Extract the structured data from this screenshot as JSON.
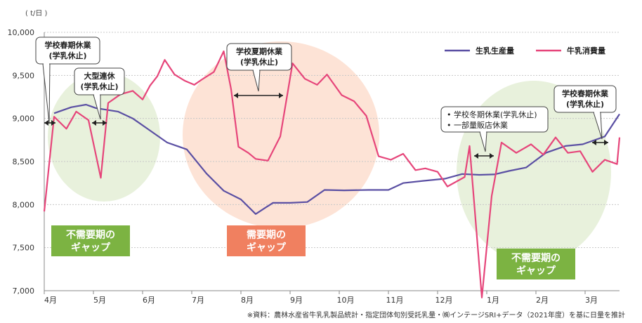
{
  "chart_data": {
    "type": "line",
    "unit_label": "( t/日 )",
    "ylim": [
      7000,
      10000
    ],
    "y_ticks": [
      7000,
      7500,
      8000,
      8500,
      9000,
      9500,
      10000
    ],
    "y_tick_labels": [
      "7,000",
      "7,500",
      "8,000",
      "8,500",
      "9,000",
      "9,500",
      "10,000"
    ],
    "x_range": [
      0,
      11.7
    ],
    "months": [
      "4月",
      "5月",
      "6月",
      "7月",
      "8月",
      "9月",
      "10月",
      "11月",
      "12月",
      "1月",
      "2月",
      "3月"
    ],
    "grid": true,
    "legend_position": "top-right",
    "series": [
      {
        "name": "生乳生産量",
        "color": "#5a4fa3",
        "x": [
          0.2,
          0.55,
          0.85,
          1.05,
          1.5,
          1.8,
          2.1,
          2.5,
          2.9,
          3.3,
          3.65,
          4.0,
          4.3,
          4.65,
          5.0,
          5.35,
          5.7,
          6.1,
          6.6,
          7.0,
          7.3,
          7.7,
          8.15,
          8.5,
          8.85,
          9.15,
          9.45,
          9.8,
          10.2,
          10.6,
          10.95,
          11.4,
          11.7
        ],
        "y": [
          9060,
          9130,
          9160,
          9120,
          9080,
          9000,
          8880,
          8720,
          8640,
          8360,
          8160,
          8060,
          7890,
          8020,
          8020,
          8030,
          8170,
          8165,
          8170,
          8170,
          8250,
          8275,
          8300,
          8355,
          8345,
          8350,
          8390,
          8430,
          8600,
          8680,
          8700,
          8790,
          9050
        ]
      },
      {
        "name": "牛乳消費量",
        "color": "#e6457a",
        "x": [
          0.0,
          0.2,
          0.45,
          0.65,
          0.9,
          1.15,
          1.3,
          1.55,
          1.8,
          2.0,
          2.15,
          2.3,
          2.45,
          2.65,
          2.85,
          3.05,
          3.2,
          3.45,
          3.65,
          3.8,
          3.95,
          4.15,
          4.3,
          4.55,
          4.8,
          5.05,
          5.3,
          5.55,
          5.75,
          6.05,
          6.3,
          6.55,
          6.8,
          7.05,
          7.3,
          7.55,
          7.75,
          8.0,
          8.2,
          8.55,
          8.65,
          8.9,
          9.1,
          9.3,
          9.6,
          9.9,
          10.15,
          10.4,
          10.65,
          10.9,
          11.15,
          11.4,
          11.65,
          11.7
        ],
        "y": [
          7920,
          9020,
          8880,
          9080,
          8980,
          8310,
          9180,
          9280,
          9320,
          9220,
          9380,
          9490,
          9680,
          9510,
          9440,
          9390,
          9450,
          9540,
          9780,
          9340,
          8670,
          8600,
          8530,
          8510,
          8790,
          9640,
          9460,
          9390,
          9510,
          9270,
          9200,
          9030,
          8560,
          8520,
          8590,
          8400,
          8420,
          8380,
          8210,
          8320,
          8680,
          6920,
          8100,
          8720,
          8600,
          8700,
          8580,
          8780,
          8600,
          8620,
          8380,
          8520,
          8470,
          8780
        ]
      }
    ],
    "callouts": [
      {
        "id": "spring-start",
        "label": "学校春期休業\n(学乳休止)"
      },
      {
        "id": "golden-week",
        "label": "大型連休\n(学乳休止)"
      },
      {
        "id": "summer",
        "label": "学校夏期休業\n(学乳休止)"
      },
      {
        "id": "winter",
        "label": "• 学校冬期休業(学乳休止)\n• 一部量販店休業"
      },
      {
        "id": "spring-end",
        "label": "学校春期休業\n(学乳休止)"
      }
    ],
    "gap_labels": [
      {
        "id": "gap-spring",
        "label": "不需要期の\nギャップ",
        "color": "#7cb342"
      },
      {
        "id": "gap-summer",
        "label": "需要期の\nギャップ",
        "color": "#f08060"
      },
      {
        "id": "gap-winter",
        "label": "不需要期の\nギャップ",
        "color": "#7cb342"
      }
    ],
    "source_note": "※資料：農林水産省牛乳乳製品統計・指定団体旬別受託乳量・㈱インテージSRI+データ（2021年度）を基に日量を推計"
  }
}
